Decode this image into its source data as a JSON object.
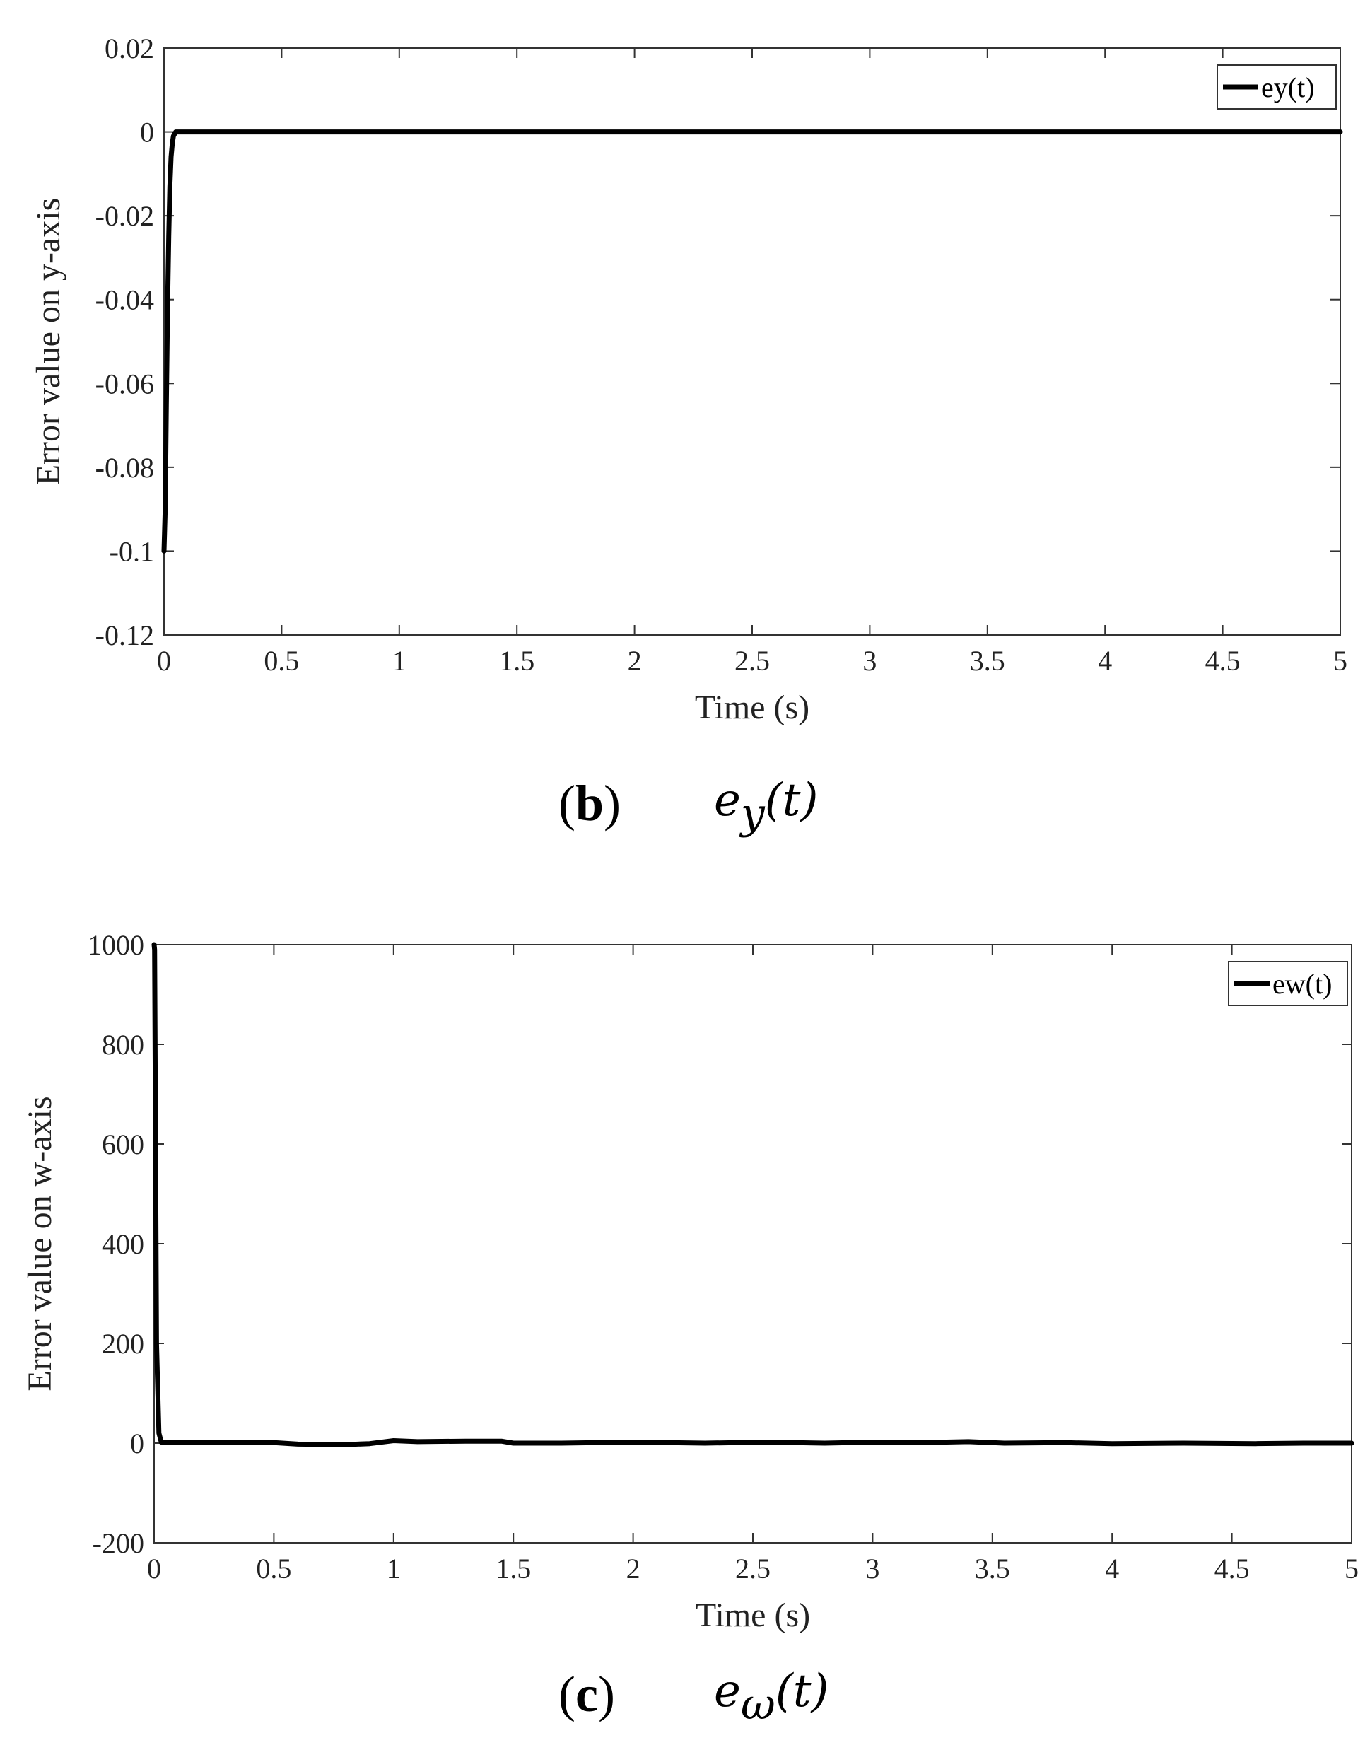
{
  "chart_data": [
    {
      "type": "line",
      "xlabel": "Time (s)",
      "ylabel": "Error value on y-axis",
      "xlim": [
        0,
        5
      ],
      "ylim": [
        -0.12,
        0.02
      ],
      "xticks": [
        "0",
        "0.5",
        "1",
        "1.5",
        "2",
        "2.5",
        "3",
        "3.5",
        "4",
        "4.5",
        "5"
      ],
      "yticks": [
        "0.02",
        "0",
        "-0.02",
        "-0.04",
        "-0.06",
        "-0.08",
        "-0.1",
        "-0.12"
      ],
      "legend_position": "top-right",
      "grid": false,
      "series": [
        {
          "name": "ey(t)",
          "color": "#000000",
          "x": [
            0,
            0.005,
            0.01,
            0.015,
            0.02,
            0.025,
            0.03,
            0.035,
            0.04,
            0.05,
            0.06,
            0.1,
            0.5,
            1,
            2,
            3,
            4,
            5
          ],
          "y": [
            -0.1,
            -0.09,
            -0.065,
            -0.042,
            -0.025,
            -0.013,
            -0.006,
            -0.003,
            -0.001,
            0,
            0,
            0,
            0,
            0,
            0,
            0,
            0,
            0
          ]
        }
      ]
    },
    {
      "type": "line",
      "xlabel": "Time (s)",
      "ylabel": "Error value on w-axis",
      "xlim": [
        0,
        5
      ],
      "ylim": [
        -200,
        1000
      ],
      "xticks": [
        "0",
        "0.5",
        "1",
        "1.5",
        "2",
        "2.5",
        "3",
        "3.5",
        "4",
        "4.5",
        "5"
      ],
      "yticks": [
        "1000",
        "800",
        "600",
        "400",
        "200",
        "0",
        "-200"
      ],
      "legend_position": "top-right",
      "grid": false,
      "series": [
        {
          "name": "ew(t)",
          "color": "#000000",
          "x": [
            0,
            0.002,
            0.005,
            0.01,
            0.02,
            0.03,
            0.1,
            0.3,
            0.5,
            0.6,
            0.8,
            0.9,
            1.0,
            1.1,
            1.3,
            1.45,
            1.5,
            1.7,
            2.0,
            2.3,
            2.55,
            2.8,
            3.0,
            3.2,
            3.4,
            3.55,
            3.8,
            4.0,
            4.3,
            4.6,
            4.8,
            5.0
          ],
          "y": [
            1000,
            990,
            700,
            200,
            20,
            2,
            1,
            2,
            1,
            -2,
            -3,
            -1,
            5,
            3,
            4,
            4,
            0,
            0,
            2,
            0,
            2,
            0,
            2,
            1,
            3,
            0,
            1,
            -1,
            0,
            -1,
            0,
            0
          ]
        }
      ]
    }
  ],
  "captions": {
    "b": {
      "label": "b",
      "open": "(",
      "close": ")",
      "formula_base": "e",
      "formula_sub": "y",
      "formula_tail": "(t)"
    },
    "c": {
      "label": "c",
      "open": "(",
      "close": ")",
      "formula_base": "e",
      "formula_sub": "ω",
      "formula_tail": "(t)"
    }
  }
}
